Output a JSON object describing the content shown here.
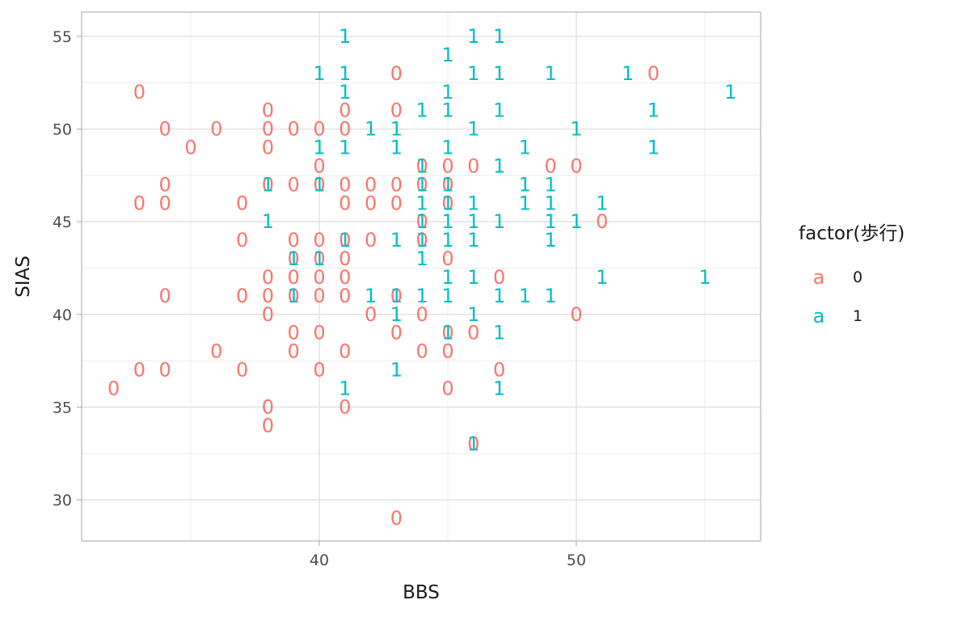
{
  "chart_data": {
    "type": "scatter",
    "geom": "text",
    "title": "",
    "xlabel": "BBS",
    "ylabel": "SIAS",
    "xlim": [
      30.8,
      57.2
    ],
    "ylim": [
      27.8,
      56.4
    ],
    "x_ticks": [
      40,
      50
    ],
    "y_ticks": [
      30,
      35,
      40,
      45,
      50,
      55
    ],
    "grid": true,
    "theme": "light",
    "legend": {
      "title": "factor(歩行)",
      "position": "right",
      "key_glyph": "a",
      "entries": [
        {
          "label": "0",
          "color": "#F8766D"
        },
        {
          "label": "1",
          "color": "#00BFC4"
        }
      ]
    },
    "series": [
      {
        "name": "0",
        "color": "#F8766D",
        "points": [
          [
            33,
            52
          ],
          [
            34,
            50
          ],
          [
            36,
            50
          ],
          [
            35,
            49
          ],
          [
            38,
            51
          ],
          [
            38,
            50
          ],
          [
            38,
            49
          ],
          [
            39,
            50
          ],
          [
            40,
            50
          ],
          [
            41,
            50
          ],
          [
            41,
            51
          ],
          [
            43,
            53
          ],
          [
            43,
            51
          ],
          [
            40,
            48
          ],
          [
            34,
            47
          ],
          [
            38,
            47
          ],
          [
            39,
            47
          ],
          [
            40,
            47
          ],
          [
            41,
            47
          ],
          [
            42,
            47
          ],
          [
            43,
            47
          ],
          [
            33,
            46
          ],
          [
            34,
            46
          ],
          [
            37,
            46
          ],
          [
            41,
            46
          ],
          [
            42,
            46
          ],
          [
            43,
            46
          ],
          [
            44,
            48
          ],
          [
            45,
            48
          ],
          [
            46,
            48
          ],
          [
            49,
            48
          ],
          [
            50,
            48
          ],
          [
            44,
            47
          ],
          [
            45,
            47
          ],
          [
            45,
            46
          ],
          [
            44,
            45
          ],
          [
            51,
            45
          ],
          [
            37,
            44
          ],
          [
            39,
            44
          ],
          [
            40,
            44
          ],
          [
            41,
            44
          ],
          [
            42,
            44
          ],
          [
            44,
            44
          ],
          [
            39,
            43
          ],
          [
            40,
            43
          ],
          [
            41,
            43
          ],
          [
            45,
            43
          ],
          [
            38,
            42
          ],
          [
            39,
            42
          ],
          [
            40,
            42
          ],
          [
            41,
            42
          ],
          [
            47,
            42
          ],
          [
            34,
            41
          ],
          [
            37,
            41
          ],
          [
            38,
            41
          ],
          [
            39,
            41
          ],
          [
            40,
            41
          ],
          [
            41,
            41
          ],
          [
            43,
            41
          ],
          [
            38,
            40
          ],
          [
            42,
            40
          ],
          [
            44,
            40
          ],
          [
            50,
            40
          ],
          [
            39,
            39
          ],
          [
            40,
            39
          ],
          [
            43,
            39
          ],
          [
            45,
            39
          ],
          [
            46,
            39
          ],
          [
            36,
            38
          ],
          [
            39,
            38
          ],
          [
            41,
            38
          ],
          [
            44,
            38
          ],
          [
            45,
            38
          ],
          [
            33,
            37
          ],
          [
            34,
            37
          ],
          [
            37,
            37
          ],
          [
            40,
            37
          ],
          [
            47,
            37
          ],
          [
            32,
            36
          ],
          [
            45,
            36
          ],
          [
            38,
            35
          ],
          [
            41,
            35
          ],
          [
            38,
            34
          ],
          [
            46,
            33
          ],
          [
            43,
            29
          ],
          [
            53,
            53
          ]
        ]
      },
      {
        "name": "1",
        "color": "#00BFC4",
        "points": [
          [
            41,
            55
          ],
          [
            46,
            55
          ],
          [
            47,
            55
          ],
          [
            45,
            54
          ],
          [
            40,
            53
          ],
          [
            41,
            53
          ],
          [
            46,
            53
          ],
          [
            47,
            53
          ],
          [
            49,
            53
          ],
          [
            52,
            53
          ],
          [
            41,
            52
          ],
          [
            45,
            52
          ],
          [
            56,
            52
          ],
          [
            44,
            51
          ],
          [
            45,
            51
          ],
          [
            47,
            51
          ],
          [
            53,
            51
          ],
          [
            42,
            50
          ],
          [
            43,
            50
          ],
          [
            46,
            50
          ],
          [
            50,
            50
          ],
          [
            40,
            49
          ],
          [
            41,
            49
          ],
          [
            43,
            49
          ],
          [
            45,
            49
          ],
          [
            48,
            49
          ],
          [
            53,
            49
          ],
          [
            44,
            48
          ],
          [
            47,
            48
          ],
          [
            38,
            47
          ],
          [
            40,
            47
          ],
          [
            44,
            47
          ],
          [
            45,
            47
          ],
          [
            48,
            47
          ],
          [
            49,
            47
          ],
          [
            44,
            46
          ],
          [
            45,
            46
          ],
          [
            46,
            46
          ],
          [
            48,
            46
          ],
          [
            49,
            46
          ],
          [
            51,
            46
          ],
          [
            38,
            45
          ],
          [
            44,
            45
          ],
          [
            45,
            45
          ],
          [
            46,
            45
          ],
          [
            47,
            45
          ],
          [
            49,
            45
          ],
          [
            50,
            45
          ],
          [
            41,
            44
          ],
          [
            43,
            44
          ],
          [
            44,
            44
          ],
          [
            45,
            44
          ],
          [
            46,
            44
          ],
          [
            49,
            44
          ],
          [
            39,
            43
          ],
          [
            40,
            43
          ],
          [
            44,
            43
          ],
          [
            45,
            42
          ],
          [
            46,
            42
          ],
          [
            51,
            42
          ],
          [
            55,
            42
          ],
          [
            39,
            41
          ],
          [
            42,
            41
          ],
          [
            43,
            41
          ],
          [
            44,
            41
          ],
          [
            45,
            41
          ],
          [
            47,
            41
          ],
          [
            48,
            41
          ],
          [
            49,
            41
          ],
          [
            43,
            40
          ],
          [
            46,
            40
          ],
          [
            45,
            39
          ],
          [
            47,
            39
          ],
          [
            43,
            37
          ],
          [
            41,
            36
          ],
          [
            47,
            36
          ],
          [
            46,
            33
          ]
        ]
      }
    ]
  },
  "axes": {
    "x_title": "BBS",
    "y_title": "SIAS",
    "x_tick_labels": [
      "40",
      "50"
    ],
    "y_tick_labels": [
      "30",
      "35",
      "40",
      "45",
      "50",
      "55"
    ]
  },
  "legend": {
    "title": "factor(歩行)",
    "key_glyph": "a",
    "items": [
      {
        "label": "0",
        "color": "#F8766D"
      },
      {
        "label": "1",
        "color": "#00BFC4"
      }
    ]
  }
}
